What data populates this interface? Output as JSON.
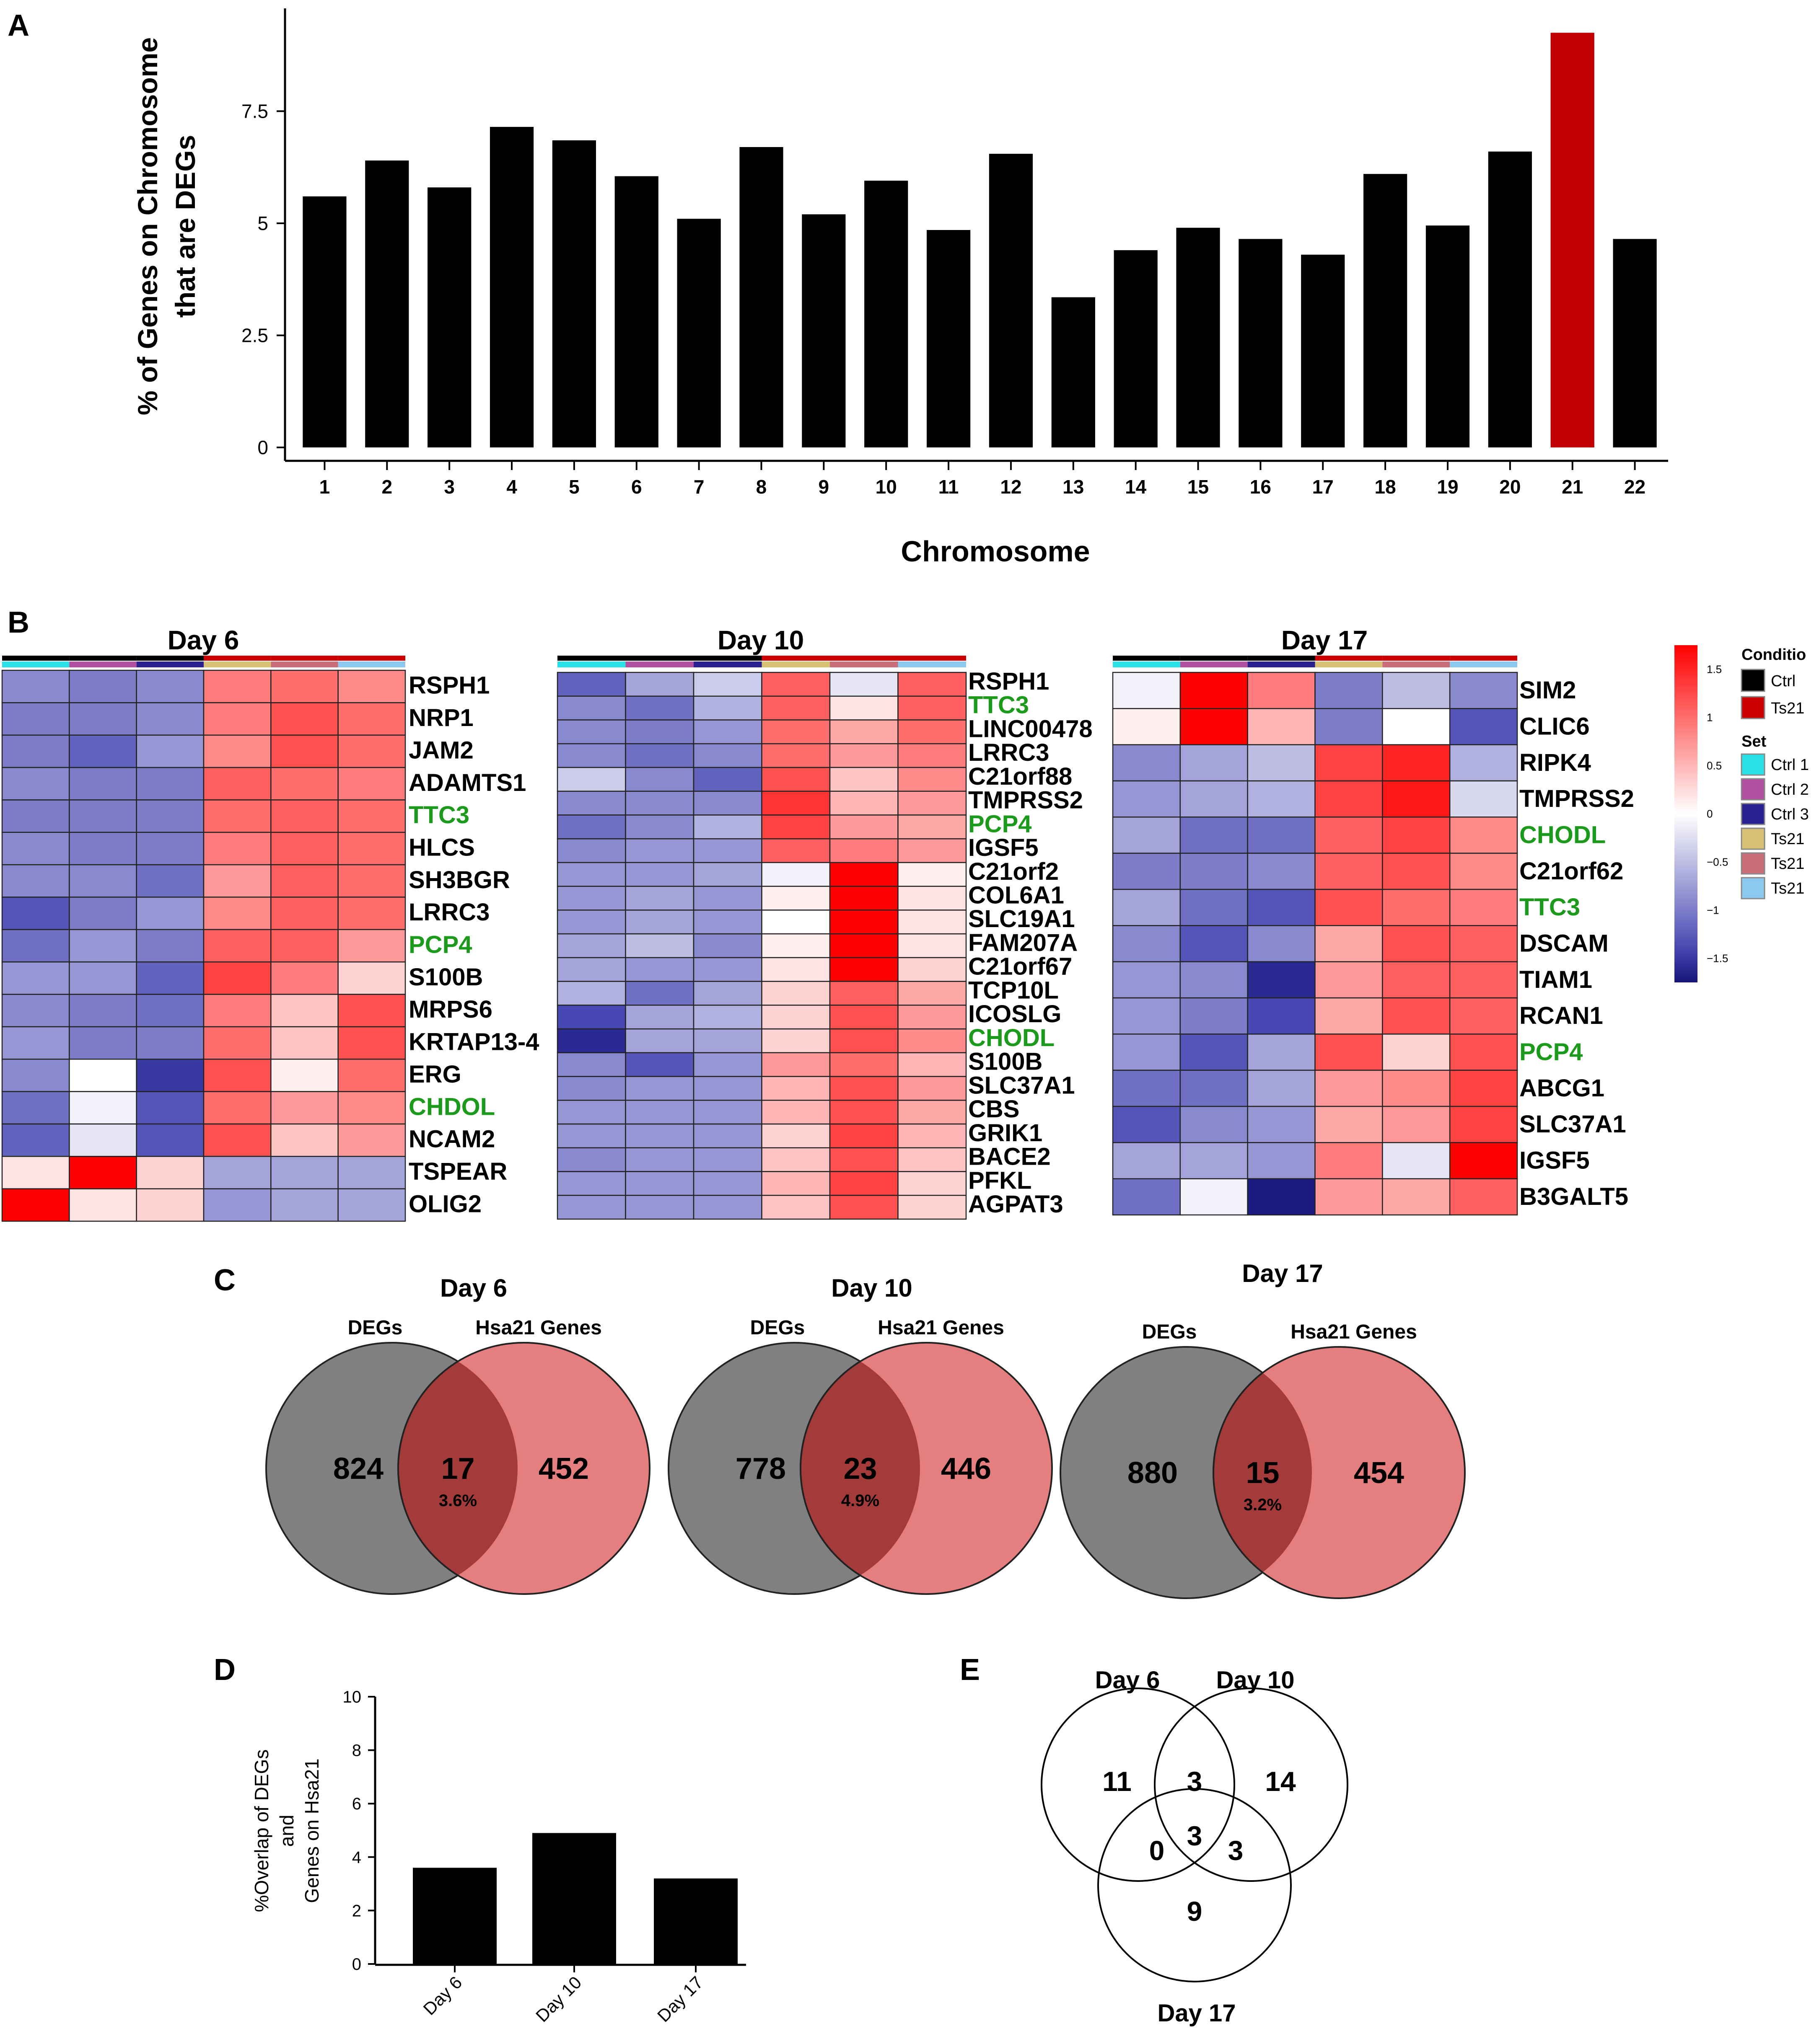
{
  "panels": {
    "A": "A",
    "B": "B",
    "C": "C",
    "D": "D",
    "E": "E"
  },
  "colors": {
    "bar": "#000000",
    "highlight": "#c00000",
    "green": "#1b9a1b",
    "venn_left": "#808080",
    "venn_right": "#e57f7f",
    "venn_overlap": "#a33b3b",
    "cond_ctrl": "#000000",
    "cond_ts21": "#cc0000",
    "set_colors": [
      "#27e0e8",
      "#b24fa0",
      "#2a2190",
      "#d8c074",
      "#c96d78",
      "#8cc8f0"
    ]
  },
  "chart_data": [
    {
      "id": "A",
      "type": "bar",
      "title": "",
      "xlabel": "Chromosome",
      "ylabel": [
        "% of Genes on Chromosome",
        "that are DEGs"
      ],
      "categories": [
        "1",
        "2",
        "3",
        "4",
        "5",
        "6",
        "7",
        "8",
        "9",
        "10",
        "11",
        "12",
        "13",
        "14",
        "15",
        "16",
        "17",
        "18",
        "19",
        "20",
        "21",
        "22"
      ],
      "values": [
        5.6,
        6.4,
        5.8,
        7.15,
        6.85,
        6.05,
        5.1,
        6.7,
        5.2,
        5.95,
        4.85,
        6.55,
        3.35,
        4.4,
        4.9,
        4.65,
        4.3,
        6.1,
        4.95,
        6.6,
        9.25,
        4.65
      ],
      "highlight_category": "21",
      "yticks": [
        "0",
        "2.5",
        "5",
        "7.5"
      ],
      "ylim": [
        0,
        9.7
      ]
    },
    {
      "id": "B",
      "type": "heatmap",
      "legend": {
        "scale_ticks": [
          "1.5",
          "1",
          "0.5",
          "0",
          "−0.5",
          "−1",
          "−1.5"
        ],
        "range": [
          -1.75,
          1.75
        ],
        "condition_title": "Conditio",
        "conditions": [
          "Ctrl",
          "Ts21"
        ],
        "set_title": "Set",
        "sets": [
          "Ctrl 1",
          "Ctrl 2",
          "Ctrl 3",
          "Ts21",
          "Ts21",
          "Ts21"
        ]
      },
      "maps": [
        {
          "title": "Day 6",
          "genes": [
            "RSPH1",
            "NRP1",
            "JAM2",
            "ADAMTS1",
            "TTC3",
            "HLCS",
            "SH3BGR",
            "LRRC3",
            "PCP4",
            "S100B",
            "MRPS6",
            "KRTAP13-4",
            "ERG",
            "CHDOL",
            "NCAM2",
            "TSPEAR",
            "OLIG2"
          ],
          "green": [
            "TTC3",
            "PCP4",
            "CHDOL"
          ],
          "values": [
            [
              -0.9,
              -1.0,
              -0.9,
              0.9,
              1.0,
              0.8
            ],
            [
              -1.0,
              -1.0,
              -0.9,
              0.9,
              1.2,
              1.0
            ],
            [
              -1.0,
              -1.2,
              -0.8,
              0.8,
              1.2,
              1.0
            ],
            [
              -0.9,
              -1.0,
              -1.0,
              1.1,
              1.0,
              0.9
            ],
            [
              -1.0,
              -1.0,
              -1.0,
              1.0,
              1.1,
              1.0
            ],
            [
              -0.9,
              -1.0,
              -1.0,
              0.9,
              1.1,
              1.0
            ],
            [
              -0.9,
              -0.9,
              -1.1,
              0.7,
              1.1,
              1.0
            ],
            [
              -1.3,
              -1.0,
              -0.8,
              0.8,
              1.1,
              1.0
            ],
            [
              -1.1,
              -0.8,
              -1.0,
              1.1,
              1.1,
              0.7
            ],
            [
              -0.8,
              -0.8,
              -1.2,
              1.3,
              0.9,
              0.3
            ],
            [
              -0.9,
              -1.0,
              -1.1,
              0.9,
              0.4,
              1.2
            ],
            [
              -0.8,
              -1.0,
              -1.0,
              1.0,
              0.4,
              1.2
            ],
            [
              -0.9,
              0.0,
              -1.5,
              1.2,
              0.1,
              1.0
            ],
            [
              -1.1,
              -0.1,
              -1.3,
              1.0,
              0.7,
              0.8
            ],
            [
              -1.2,
              -0.2,
              -1.3,
              1.2,
              0.4,
              0.7
            ],
            [
              0.2,
              1.8,
              0.3,
              -0.7,
              -0.7,
              -0.7
            ],
            [
              1.8,
              0.2,
              0.3,
              -0.8,
              -0.7,
              -0.7
            ]
          ]
        },
        {
          "title": "Day 10",
          "genes": [
            "RSPH1",
            "TTC3",
            "LINC00478",
            "LRRC3",
            "C21orf88",
            "TMPRSS2",
            "PCP4",
            "IGSF5",
            "C21orf2",
            "COL6A1",
            "SLC19A1",
            "FAM207A",
            "C21orf67",
            "TCP10L",
            "ICOSLG",
            "CHODL",
            "S100B",
            "SLC37A1",
            "CBS",
            "GRIK1",
            "BACE2",
            "PFKL",
            "AGPAT3"
          ],
          "green": [
            "TTC3",
            "PCP4",
            "CHODL"
          ],
          "values": [
            [
              -1.2,
              -0.7,
              -0.4,
              1.1,
              -0.2,
              1.1
            ],
            [
              -0.9,
              -1.1,
              -0.6,
              1.1,
              0.2,
              1.1
            ],
            [
              -0.9,
              -1.0,
              -0.8,
              1.0,
              0.6,
              1.0
            ],
            [
              -0.9,
              -1.1,
              -0.9,
              1.0,
              0.7,
              0.9
            ],
            [
              -0.4,
              -0.9,
              -1.2,
              1.2,
              0.4,
              0.8
            ],
            [
              -0.9,
              -0.9,
              -0.9,
              1.4,
              0.5,
              0.7
            ],
            [
              -1.1,
              -0.9,
              -0.6,
              1.3,
              0.7,
              0.6
            ],
            [
              -0.9,
              -0.8,
              -0.8,
              1.1,
              0.9,
              0.7
            ],
            [
              -0.8,
              -0.8,
              -0.7,
              -0.1,
              1.8,
              0.1
            ],
            [
              -0.8,
              -0.7,
              -0.8,
              0.1,
              1.8,
              0.2
            ],
            [
              -0.8,
              -0.7,
              -0.8,
              0.0,
              1.8,
              0.2
            ],
            [
              -0.7,
              -0.5,
              -0.9,
              0.1,
              1.8,
              0.2
            ],
            [
              -0.7,
              -0.8,
              -0.8,
              0.2,
              1.8,
              0.3
            ],
            [
              -0.6,
              -1.1,
              -0.7,
              0.3,
              1.1,
              0.6
            ],
            [
              -1.4,
              -0.7,
              -0.6,
              0.3,
              1.2,
              0.7
            ],
            [
              -1.6,
              -0.7,
              -0.7,
              0.3,
              1.2,
              0.8
            ],
            [
              -0.9,
              -1.3,
              -0.8,
              0.7,
              1.0,
              0.5
            ],
            [
              -0.9,
              -0.8,
              -0.8,
              0.5,
              1.2,
              0.7
            ],
            [
              -0.8,
              -0.8,
              -0.8,
              0.5,
              1.2,
              0.6
            ],
            [
              -0.8,
              -0.8,
              -0.8,
              0.3,
              1.3,
              0.5
            ],
            [
              -0.9,
              -0.8,
              -0.8,
              0.4,
              1.2,
              0.4
            ],
            [
              -0.8,
              -0.8,
              -0.8,
              0.5,
              1.3,
              0.3
            ],
            [
              -0.8,
              -0.8,
              -0.8,
              0.4,
              1.2,
              0.3
            ]
          ]
        },
        {
          "title": "Day 17",
          "genes": [
            "SIM2",
            "CLIC6",
            "RIPK4",
            "TMPRSS2",
            "CHODL",
            "C21orf62",
            "TTC3",
            "DSCAM",
            "TIAM1",
            "RCAN1",
            "PCP4",
            "ABCG1",
            "SLC37A1",
            "IGSF5",
            "B3GALT5"
          ],
          "green": [
            "CHODL",
            "TTC3",
            "PCP4"
          ],
          "values": [
            [
              -0.1,
              1.8,
              0.9,
              -1.0,
              -0.5,
              -0.9
            ],
            [
              0.1,
              1.8,
              0.5,
              -1.0,
              0.0,
              -1.3
            ],
            [
              -0.9,
              -0.7,
              -0.5,
              1.3,
              1.5,
              -0.6
            ],
            [
              -0.8,
              -0.7,
              -0.6,
              1.3,
              1.6,
              -0.3
            ],
            [
              -0.7,
              -1.1,
              -1.1,
              1.1,
              1.3,
              0.8
            ],
            [
              -1.0,
              -1.0,
              -0.9,
              1.1,
              1.2,
              0.8
            ],
            [
              -0.7,
              -1.1,
              -1.3,
              1.2,
              1.0,
              0.9
            ],
            [
              -0.9,
              -1.3,
              -0.9,
              0.6,
              1.2,
              1.1
            ],
            [
              -0.8,
              -0.9,
              -1.6,
              0.7,
              1.1,
              1.1
            ],
            [
              -0.8,
              -1.0,
              -1.4,
              0.6,
              1.2,
              1.1
            ],
            [
              -0.8,
              -1.3,
              -0.7,
              1.2,
              0.3,
              1.2
            ],
            [
              -1.1,
              -1.1,
              -0.7,
              0.7,
              0.8,
              1.3
            ],
            [
              -1.3,
              -0.9,
              -0.8,
              0.6,
              0.7,
              1.3
            ],
            [
              -0.7,
              -0.7,
              -0.8,
              0.9,
              -0.2,
              1.8
            ],
            [
              -1.1,
              -0.1,
              -1.7,
              0.7,
              0.6,
              1.1
            ]
          ]
        }
      ]
    },
    {
      "id": "C",
      "type": "venn",
      "left_label": "DEGs",
      "right_label": "Hsa21 Genes",
      "items": [
        {
          "title": "Day 6",
          "left": "824",
          "overlap": "17",
          "pct": "3.6%",
          "right": "452"
        },
        {
          "title": "Day 10",
          "left": "778",
          "overlap": "23",
          "pct": "4.9%",
          "right": "446"
        },
        {
          "title": "Day 17",
          "left": "880",
          "overlap": "15",
          "pct": "3.2%",
          "right": "454"
        }
      ]
    },
    {
      "id": "D",
      "type": "bar",
      "categories": [
        "Day 6",
        "Day 10",
        "Day 17"
      ],
      "values": [
        3.6,
        4.9,
        3.2
      ],
      "ylabel": [
        "%Overlap of DEGs",
        "and",
        "Genes on Hsa21"
      ],
      "yticks": [
        "0",
        "2",
        "4",
        "6",
        "8",
        "10"
      ],
      "ylim": [
        0,
        10
      ]
    },
    {
      "id": "E",
      "type": "venn3",
      "labels": [
        "Day 6",
        "Day 10",
        "Day 17"
      ],
      "regions": {
        "a": "11",
        "b": "14",
        "c": "9",
        "ab": "3",
        "ac": "0",
        "bc": "3",
        "abc": "3"
      }
    }
  ]
}
